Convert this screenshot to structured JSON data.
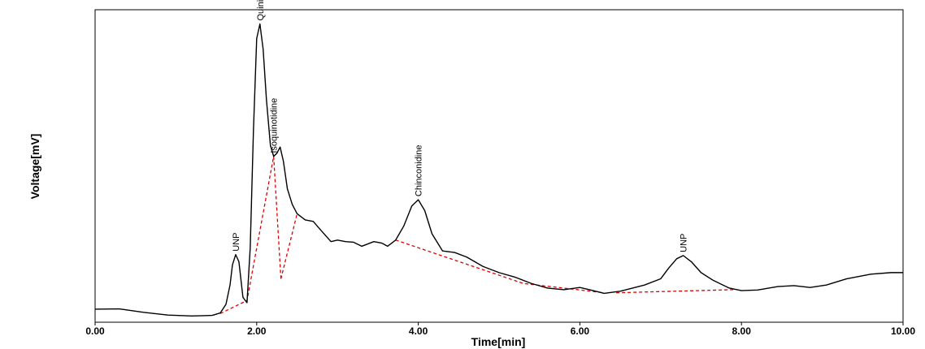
{
  "chart_data": {
    "type": "line",
    "title": "",
    "xlabel": "Time[min]",
    "ylabel": "Voltage[mV]",
    "xlim": [
      0,
      10
    ],
    "ylim": [
      0,
      100
    ],
    "grid": false,
    "x_tick_labels": [
      "0.00",
      "2.00",
      "4.00",
      "6.00",
      "8.00",
      "10.00"
    ],
    "colors": {
      "trace": "#000000",
      "baseline": "#e00000"
    },
    "series": [
      {
        "values": [
          [
            0.0,
            4.2
          ],
          [
            0.3,
            4.3
          ],
          [
            0.6,
            3.2
          ],
          [
            0.9,
            2.3
          ],
          [
            1.2,
            2.0
          ],
          [
            1.45,
            2.2
          ],
          [
            1.55,
            3.0
          ],
          [
            1.62,
            5.8
          ],
          [
            1.67,
            12.0
          ],
          [
            1.7,
            18.5
          ],
          [
            1.74,
            21.8
          ],
          [
            1.78,
            19.5
          ],
          [
            1.83,
            8.0
          ],
          [
            1.88,
            6.3
          ],
          [
            1.92,
            24.0
          ],
          [
            1.96,
            62.0
          ],
          [
            2.0,
            91.5
          ],
          [
            2.04,
            96.2
          ],
          [
            2.08,
            88.0
          ],
          [
            2.12,
            72.0
          ],
          [
            2.17,
            57.0
          ],
          [
            2.21,
            53.5
          ],
          [
            2.25,
            54.5
          ],
          [
            2.29,
            56.5
          ],
          [
            2.33,
            52.0
          ],
          [
            2.38,
            43.0
          ],
          [
            2.44,
            38.0
          ],
          [
            2.5,
            35.0
          ],
          [
            2.6,
            33.0
          ],
          [
            2.7,
            32.5
          ],
          [
            2.8,
            29.5
          ],
          [
            2.92,
            26.0
          ],
          [
            3.0,
            26.5
          ],
          [
            3.1,
            26.0
          ],
          [
            3.2,
            25.8
          ],
          [
            3.3,
            24.5
          ],
          [
            3.45,
            26.0
          ],
          [
            3.55,
            25.5
          ],
          [
            3.62,
            24.5
          ],
          [
            3.72,
            26.5
          ],
          [
            3.82,
            31.0
          ],
          [
            3.92,
            37.5
          ],
          [
            4.0,
            39.5
          ],
          [
            4.08,
            36.0
          ],
          [
            4.17,
            28.5
          ],
          [
            4.3,
            23.0
          ],
          [
            4.45,
            22.5
          ],
          [
            4.6,
            21.0
          ],
          [
            4.8,
            18.0
          ],
          [
            5.0,
            16.0
          ],
          [
            5.2,
            14.5
          ],
          [
            5.4,
            12.5
          ],
          [
            5.6,
            11.0
          ],
          [
            5.8,
            10.5
          ],
          [
            6.0,
            11.2
          ],
          [
            6.15,
            10.3
          ],
          [
            6.3,
            9.3
          ],
          [
            6.5,
            10.0
          ],
          [
            6.8,
            12.0
          ],
          [
            7.0,
            14.0
          ],
          [
            7.1,
            17.5
          ],
          [
            7.2,
            20.5
          ],
          [
            7.28,
            21.5
          ],
          [
            7.38,
            19.5
          ],
          [
            7.5,
            16.0
          ],
          [
            7.65,
            13.5
          ],
          [
            7.85,
            11.0
          ],
          [
            8.0,
            10.2
          ],
          [
            8.2,
            10.4
          ],
          [
            8.45,
            11.5
          ],
          [
            8.65,
            11.8
          ],
          [
            8.85,
            11.2
          ],
          [
            9.05,
            12.0
          ],
          [
            9.3,
            14.0
          ],
          [
            9.6,
            15.5
          ],
          [
            9.85,
            16.0
          ],
          [
            10.0,
            16.0
          ]
        ]
      }
    ],
    "baselines": [
      [
        [
          1.55,
          2.8
        ],
        [
          1.88,
          7.0
        ],
        [
          2.21,
          53.5
        ]
      ],
      [
        [
          2.21,
          53.5
        ],
        [
          2.3,
          14.0
        ]
      ],
      [
        [
          2.3,
          14.0
        ],
        [
          2.5,
          35.0
        ]
      ],
      [
        [
          3.72,
          26.5
        ],
        [
          5.3,
          12.5
        ],
        [
          6.3,
          9.5
        ]
      ],
      [
        [
          6.45,
          9.5
        ],
        [
          7.9,
          10.5
        ]
      ]
    ],
    "annotations": [
      {
        "text": "UNP",
        "x": 1.74,
        "y": 21.8
      },
      {
        "text": "Quinine",
        "x": 2.04,
        "y": 96.2
      },
      {
        "text": "Isoquinotidine",
        "x": 2.21,
        "y": 53.5
      },
      {
        "text": "Chinconidine",
        "x": 4.0,
        "y": 39.5
      },
      {
        "text": "UNP",
        "x": 7.28,
        "y": 21.5
      }
    ]
  }
}
